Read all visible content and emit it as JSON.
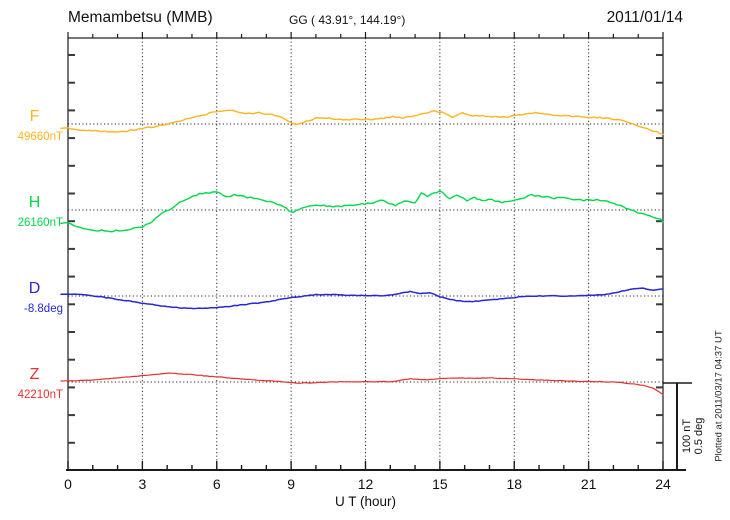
{
  "header": {
    "station": "Memambetsu (MMB)",
    "coords": "GG ( 43.91°, 144.19°)",
    "date": "2011/01/14"
  },
  "footer": {
    "xlabel": "U T (hour)"
  },
  "side": {
    "scale_label_nt": "100 nT",
    "scale_label_deg": "0.5 deg",
    "plotted_at": "Plotted at 2011/03/17 04:37 UT"
  },
  "chart_data": {
    "type": "line",
    "title": "Memambetsu (MMB) magnetogram 2011/01/14",
    "xlabel": "U T (hour)",
    "x_range": [
      0,
      24
    ],
    "x_ticks": [
      0,
      3,
      6,
      9,
      12,
      15,
      18,
      21,
      24
    ],
    "grid": "dotted vertical lines every 3 h; dotted horizontal baseline per component",
    "legend_position": "left margin, one label per trace",
    "scale_division": {
      "magnetic": "100 nT",
      "declination": "0.5 deg"
    },
    "series": [
      {
        "name": "F",
        "unit": "nT",
        "baseline_label": "49660nT",
        "baseline_value": 49660,
        "color": "#FFB41E",
        "points": [
          [
            0,
            -5.0
          ],
          [
            0.5,
            -7.0
          ],
          [
            1.0,
            -8.1
          ],
          [
            1.7,
            -9.0
          ],
          [
            2.4,
            -7.8
          ],
          [
            3.0,
            -5.0
          ],
          [
            3.7,
            -2.3
          ],
          [
            4.1,
            0.0
          ],
          [
            4.5,
            3.5
          ],
          [
            4.9,
            6.6
          ],
          [
            5.3,
            9.7
          ],
          [
            5.7,
            12.4
          ],
          [
            6.1,
            14.3
          ],
          [
            6.5,
            16.3
          ],
          [
            6.9,
            13.6
          ],
          [
            7.3,
            12.4
          ],
          [
            7.7,
            13.1
          ],
          [
            8.1,
            11.3
          ],
          [
            8.5,
            8.5
          ],
          [
            8.9,
            3.5
          ],
          [
            9.1,
            0.8
          ],
          [
            9.3,
            -0.3
          ],
          [
            9.6,
            2.7
          ],
          [
            10.0,
            6.6
          ],
          [
            10.4,
            6.6
          ],
          [
            11.1,
            5.5
          ],
          [
            11.8,
            5.0
          ],
          [
            12.4,
            5.8
          ],
          [
            13.1,
            8.5
          ],
          [
            13.5,
            6.6
          ],
          [
            14.2,
            11.6
          ],
          [
            14.7,
            15.1
          ],
          [
            15.1,
            13.6
          ],
          [
            15.5,
            8.5
          ],
          [
            15.9,
            12.4
          ],
          [
            16.2,
            9.7
          ],
          [
            16.6,
            9.3
          ],
          [
            17.1,
            8.5
          ],
          [
            17.7,
            8.5
          ],
          [
            18.2,
            10.5
          ],
          [
            18.6,
            13.1
          ],
          [
            19.0,
            12.4
          ],
          [
            19.6,
            9.7
          ],
          [
            20.1,
            9.3
          ],
          [
            20.6,
            8.5
          ],
          [
            21.2,
            7.3
          ],
          [
            21.7,
            6.6
          ],
          [
            22.3,
            4.7
          ],
          [
            22.7,
            0.8
          ],
          [
            23.1,
            -3.1
          ],
          [
            23.5,
            -7.0
          ],
          [
            24.0,
            -12.0
          ]
        ]
      },
      {
        "name": "H",
        "unit": "nT",
        "baseline_label": "26160nT",
        "baseline_value": 26160,
        "color": "#00D84B",
        "points": [
          [
            0,
            -15.5
          ],
          [
            0.35,
            -19.4
          ],
          [
            1.0,
            -23.3
          ],
          [
            1.7,
            -24.4
          ],
          [
            2.4,
            -23.3
          ],
          [
            3.0,
            -19.4
          ],
          [
            3.4,
            -13.6
          ],
          [
            3.8,
            -3.9
          ],
          [
            4.1,
            0.0
          ],
          [
            4.5,
            9.0
          ],
          [
            4.9,
            13.6
          ],
          [
            5.3,
            19.4
          ],
          [
            5.7,
            20.1
          ],
          [
            6.0,
            21.3
          ],
          [
            6.4,
            15.5
          ],
          [
            6.7,
            17.4
          ],
          [
            7.1,
            15.5
          ],
          [
            7.5,
            13.6
          ],
          [
            7.9,
            11.6
          ],
          [
            8.3,
            7.8
          ],
          [
            8.7,
            3.9
          ],
          [
            9.0,
            -2.7
          ],
          [
            9.3,
            0.0
          ],
          [
            9.6,
            3.9
          ],
          [
            10.2,
            5.8
          ],
          [
            10.8,
            3.9
          ],
          [
            11.5,
            5.8
          ],
          [
            12.2,
            7.8
          ],
          [
            12.6,
            11.6
          ],
          [
            13.2,
            5.8
          ],
          [
            13.7,
            10.8
          ],
          [
            14.0,
            8.1
          ],
          [
            14.25,
            20.3
          ],
          [
            14.5,
            15.7
          ],
          [
            15.0,
            22.4
          ],
          [
            15.4,
            12.8
          ],
          [
            15.7,
            18.0
          ],
          [
            16.1,
            11.3
          ],
          [
            16.4,
            14.5
          ],
          [
            16.7,
            10.5
          ],
          [
            17.1,
            12.2
          ],
          [
            17.5,
            8.5
          ],
          [
            17.9,
            10.5
          ],
          [
            18.3,
            13.6
          ],
          [
            18.7,
            17.4
          ],
          [
            19.1,
            16.3
          ],
          [
            19.6,
            13.6
          ],
          [
            20.0,
            14.3
          ],
          [
            20.4,
            12.4
          ],
          [
            20.8,
            11.6
          ],
          [
            21.2,
            12.0
          ],
          [
            21.6,
            10.5
          ],
          [
            22.0,
            7.8
          ],
          [
            22.4,
            3.9
          ],
          [
            22.7,
            0.0
          ],
          [
            23.1,
            -3.9
          ],
          [
            23.5,
            -7.0
          ],
          [
            23.9,
            -10.8
          ],
          [
            24.0,
            -14.0
          ]
        ]
      },
      {
        "name": "D",
        "unit": "deg",
        "baseline_label": "-8.8deg",
        "baseline_value": -8.8,
        "color": "#2828D8",
        "points": [
          [
            0,
            0.01
          ],
          [
            0.6,
            0.008
          ],
          [
            1.3,
            -0.004
          ],
          [
            2.0,
            -0.019
          ],
          [
            2.6,
            -0.033
          ],
          [
            3.3,
            -0.048
          ],
          [
            4.0,
            -0.062
          ],
          [
            4.6,
            -0.07
          ],
          [
            5.3,
            -0.072
          ],
          [
            6.0,
            -0.068
          ],
          [
            6.6,
            -0.058
          ],
          [
            7.3,
            -0.047
          ],
          [
            8.0,
            -0.035
          ],
          [
            8.6,
            -0.019
          ],
          [
            9.3,
            -0.004
          ],
          [
            10.0,
            0.008
          ],
          [
            10.7,
            0.008
          ],
          [
            11.3,
            0.004
          ],
          [
            12.2,
            0.003
          ],
          [
            12.6,
            0.0
          ],
          [
            13.1,
            0.008
          ],
          [
            13.8,
            0.025
          ],
          [
            14.2,
            0.016
          ],
          [
            14.6,
            0.019
          ],
          [
            15.0,
            -0.004
          ],
          [
            15.4,
            -0.019
          ],
          [
            15.8,
            -0.029
          ],
          [
            16.2,
            -0.033
          ],
          [
            16.7,
            -0.027
          ],
          [
            17.3,
            -0.019
          ],
          [
            17.8,
            -0.013
          ],
          [
            18.3,
            -0.004
          ],
          [
            18.9,
            0.0
          ],
          [
            19.4,
            0.002
          ],
          [
            19.9,
            0.0
          ],
          [
            20.5,
            0.002
          ],
          [
            21.0,
            0.004
          ],
          [
            21.6,
            0.008
          ],
          [
            22.1,
            0.019
          ],
          [
            22.7,
            0.041
          ],
          [
            23.2,
            0.045
          ],
          [
            23.6,
            0.035
          ],
          [
            24.0,
            0.041
          ]
        ]
      },
      {
        "name": "Z",
        "unit": "nT",
        "baseline_label": "42210nT",
        "baseline_value": 42210,
        "color": "#E83030",
        "points": [
          [
            0,
            1.2
          ],
          [
            1.0,
            2.3
          ],
          [
            2.0,
            4.7
          ],
          [
            2.9,
            7.0
          ],
          [
            3.7,
            9.3
          ],
          [
            4.1,
            10.1
          ],
          [
            4.8,
            9.0
          ],
          [
            5.6,
            7.0
          ],
          [
            6.4,
            5.0
          ],
          [
            7.2,
            3.1
          ],
          [
            8.0,
            1.6
          ],
          [
            8.8,
            0.0
          ],
          [
            9.3,
            -1.2
          ],
          [
            10.0,
            -0.8
          ],
          [
            10.7,
            0.0
          ],
          [
            11.3,
            0.4
          ],
          [
            12.2,
            0.4
          ],
          [
            13.1,
            0.4
          ],
          [
            13.8,
            3.9
          ],
          [
            14.5,
            2.7
          ],
          [
            15.1,
            4.3
          ],
          [
            15.8,
            4.7
          ],
          [
            16.5,
            4.3
          ],
          [
            17.1,
            4.7
          ],
          [
            17.8,
            3.9
          ],
          [
            18.5,
            3.1
          ],
          [
            19.1,
            2.3
          ],
          [
            19.8,
            1.6
          ],
          [
            20.5,
            0.8
          ],
          [
            21.0,
            0.6
          ],
          [
            21.8,
            0.2
          ],
          [
            22.3,
            -0.6
          ],
          [
            22.8,
            -2.3
          ],
          [
            23.2,
            -4.1
          ],
          [
            23.6,
            -7.0
          ],
          [
            24.0,
            -14.5
          ]
        ]
      }
    ]
  }
}
